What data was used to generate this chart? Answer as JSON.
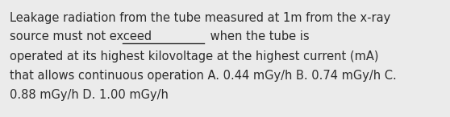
{
  "background_color": "#ebebeb",
  "text_color": "#2c2c2c",
  "font_size": 10.5,
  "font_family": "DejaVu Sans",
  "line1": "Leakage radiation from the tube measured at 1m from the x-ray",
  "line2_part1": "source must not exceed ",
  "line2_blank_text": "                ",
  "line2_part2": " when the tube is",
  "line3": "operated at its highest kilovoltage at the highest current (mA)",
  "line4": "that allows continuous operation A. 0.44 mGy/h B. 0.74 mGy/h C.",
  "line5": "0.88 mGy/h D. 1.00 mGy/h",
  "figwidth": 5.58,
  "figheight": 1.46,
  "dpi": 100
}
